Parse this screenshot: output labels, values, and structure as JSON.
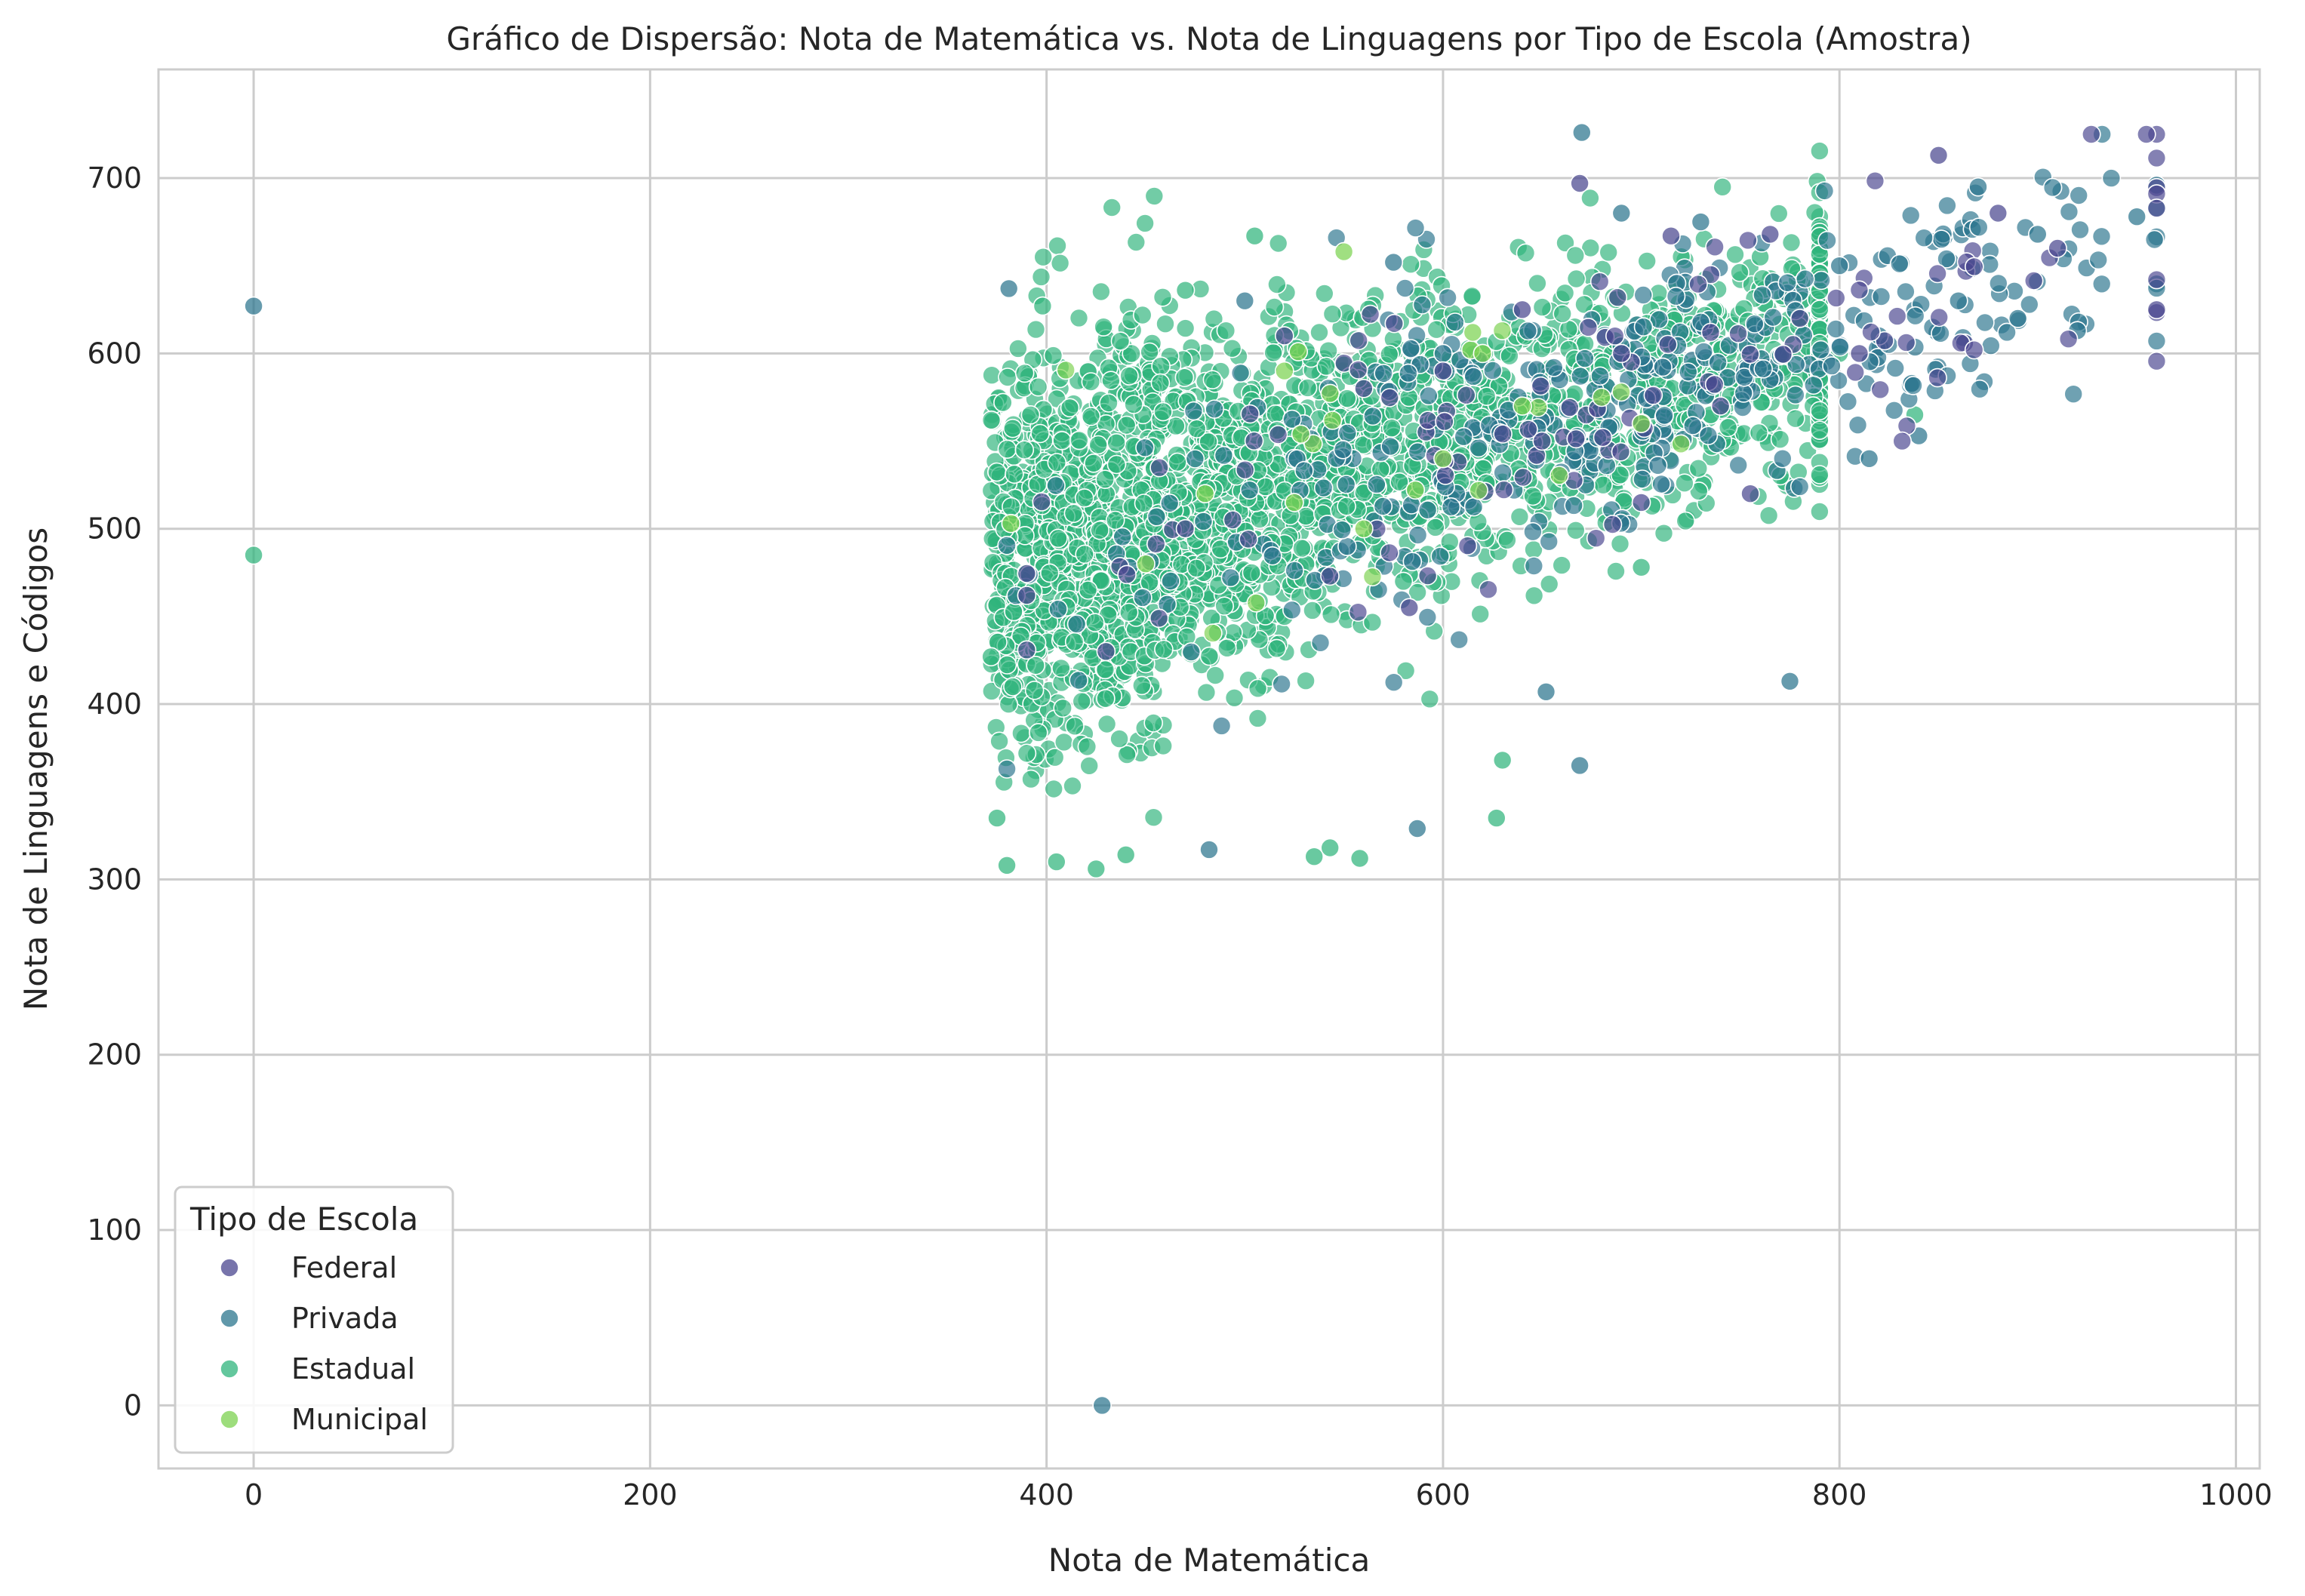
{
  "chart_data": {
    "type": "scatter",
    "title": "Gráfico de Dispersão: Nota de Matemática vs. Nota de Linguagens por Tipo de Escola (Amostra)",
    "xlabel": "Nota de Matemática",
    "ylabel": "Nota de Linguagens e Códigos",
    "xlim": [
      -48,
      1012
    ],
    "ylim": [
      -36,
      762
    ],
    "xticks": [
      0,
      200,
      400,
      600,
      800,
      1000
    ],
    "yticks": [
      0,
      100,
      200,
      300,
      400,
      500,
      600,
      700
    ],
    "grid": true,
    "legend": {
      "title": "Tipo de Escola",
      "placement": "lower-left",
      "entries": [
        "Federal",
        "Privada",
        "Estadual",
        "Municipal"
      ]
    },
    "colors": {
      "Federal": "#4a468f",
      "Privada": "#2b758e",
      "Estadual": "#2fb47c",
      "Municipal": "#7cd250"
    },
    "point_count": {
      "Federal": 110,
      "Privada": 420,
      "Estadual": 2700,
      "Municipal": 15
    },
    "series": [
      {
        "name": "Federal",
        "points": [
          [
            850,
            713
          ],
          [
            669,
            697
          ],
          [
            960,
            625
          ],
          [
            910,
            660
          ],
          [
            880,
            680
          ],
          [
            715,
            667
          ],
          [
            765,
            668
          ],
          [
            755,
            520
          ],
          [
            700,
            515
          ],
          [
            583,
            455
          ],
          [
            390,
            462
          ],
          [
            735,
            612
          ],
          [
            780,
            620
          ],
          [
            740,
            570
          ],
          [
            600,
            590
          ],
          [
            560,
            580
          ],
          [
            520,
            610
          ],
          [
            650,
            550
          ],
          [
            690,
            600
          ],
          [
            430,
            430
          ],
          [
            470,
            500
          ],
          [
            810,
            600
          ],
          [
            640,
            625
          ]
        ]
      },
      {
        "name": "Privada",
        "points": [
          [
            0,
            627
          ],
          [
            428,
            0
          ],
          [
            670,
            726
          ],
          [
            960,
            696
          ],
          [
            950,
            678
          ],
          [
            920,
            613
          ],
          [
            900,
            668
          ],
          [
            870,
            695
          ],
          [
            840,
            553
          ],
          [
            815,
            540
          ],
          [
            775,
            413
          ],
          [
            669,
            365
          ],
          [
            652,
            407
          ],
          [
            587,
            329
          ],
          [
            381,
            637
          ],
          [
            482,
            317
          ],
          [
            500,
            630
          ],
          [
            575,
            652
          ],
          [
            600,
            600
          ],
          [
            690,
            680
          ],
          [
            730,
            675
          ],
          [
            800,
            650
          ],
          [
            820,
            610
          ],
          [
            860,
            630
          ],
          [
            890,
            620
          ]
        ]
      },
      {
        "name": "Estadual",
        "points": [
          [
            0,
            485
          ],
          [
            505,
            667
          ],
          [
            398,
            627
          ],
          [
            627,
            335
          ],
          [
            630,
            368
          ],
          [
            543,
            318
          ],
          [
            558,
            312
          ],
          [
            535,
            313
          ],
          [
            440,
            314
          ],
          [
            425,
            306
          ],
          [
            405,
            310
          ],
          [
            380,
            308
          ],
          [
            375,
            335
          ],
          [
            372,
            427
          ],
          [
            378,
            572
          ],
          [
            470,
            636
          ],
          [
            838,
            565
          ],
          [
            800,
            600
          ],
          [
            760,
            655
          ],
          [
            735,
            565
          ],
          [
            700,
            478
          ],
          [
            580,
            470
          ],
          [
            520,
            450
          ]
        ]
      },
      {
        "name": "Municipal",
        "points": [
          [
            550,
            658
          ],
          [
            527,
            601
          ],
          [
            525,
            515
          ],
          [
            382,
            503
          ],
          [
            614,
            602
          ],
          [
            615,
            612
          ],
          [
            700,
            560
          ],
          [
            680,
            575
          ],
          [
            520,
            590
          ],
          [
            450,
            480
          ],
          [
            600,
            540
          ],
          [
            640,
            570
          ],
          [
            480,
            520
          ],
          [
            560,
            500
          ],
          [
            620,
            600
          ]
        ]
      }
    ]
  }
}
